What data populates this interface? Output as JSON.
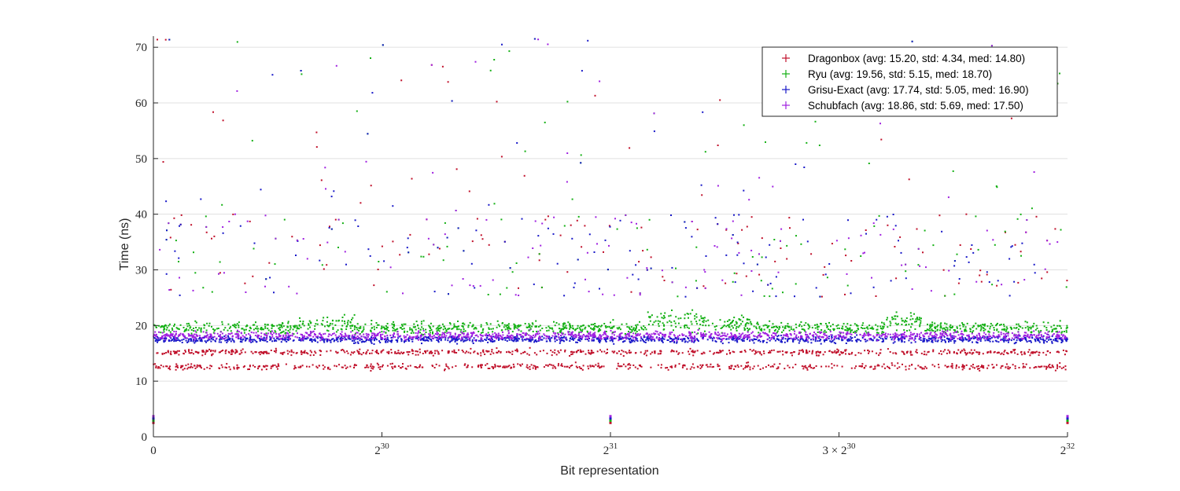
{
  "chart_data": {
    "type": "scatter",
    "title": "",
    "xlabel": "Bit representation",
    "ylabel": "Time (ns)",
    "xlim": [
      0,
      4294967296
    ],
    "ylim": [
      0,
      72
    ],
    "y_ticks": [
      0,
      10,
      20,
      30,
      40,
      50,
      60,
      70
    ],
    "x_ticks": [
      {
        "value": 0,
        "label": "0",
        "sup": ""
      },
      {
        "value": 1073741824,
        "label": "2",
        "sup": "30"
      },
      {
        "value": 2147483648,
        "label": "2",
        "sup": "31"
      },
      {
        "value": 3221225472,
        "label": "3 × 2",
        "sup": "30"
      },
      {
        "value": 4294967296,
        "label": "2",
        "sup": "32"
      }
    ],
    "grid": "horizontal",
    "legend_position": "top-right",
    "series": [
      {
        "name": "Dragonbox (avg: 15.20, std: 4.34, med: 14.80)",
        "color": "#c0102a",
        "base": 12.6,
        "base2": 15.2,
        "spread": 0.5
      },
      {
        "name": "Ryu (avg: 19.56, std: 5.15, med: 18.70)",
        "color": "#14b014",
        "base": 18.5,
        "base2": 19.6,
        "spread": 1.0
      },
      {
        "name": "Grisu-Exact (avg: 17.74, std: 5.05, med: 16.90)",
        "color": "#1818c8",
        "base": 16.4,
        "base2": 17.5,
        "spread": 0.6
      },
      {
        "name": "Schubfach (avg: 18.86, std: 5.69, med: 17.50)",
        "color": "#a020e0",
        "base": 17.3,
        "base2": 18.2,
        "spread": 0.7
      }
    ]
  }
}
